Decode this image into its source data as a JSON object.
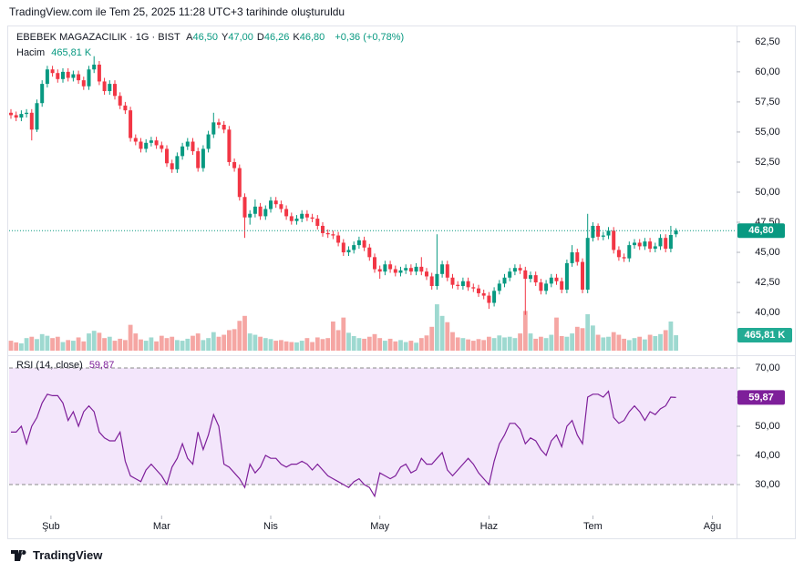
{
  "header": "TradingView.com ile Tem 25, 2025 11:28 UTC+3 tarihinde oluşturuldu",
  "footer": "TradingView",
  "chart_data": {
    "type": "candlestick",
    "title": "EBEBEK MAGAZACILIK · 1G · BIST",
    "legend": [
      {
        "key": "A",
        "label": "46,50"
      },
      {
        "key": "Y",
        "label": "47,00"
      },
      {
        "key": "D",
        "label": "46,26"
      },
      {
        "key": "K",
        "label": "46,80"
      }
    ],
    "change_label": "+0,36 (+0,78%)",
    "last_price_label": "46,80",
    "up_color": "#089981",
    "down_color": "#f23645",
    "xlim": [
      -0.35,
      139.65
    ],
    "xticks": [
      {
        "value": 7.7,
        "label": "Şub"
      },
      {
        "value": 29,
        "label": "Mar"
      },
      {
        "value": 50,
        "label": "Nis"
      },
      {
        "value": 71,
        "label": "May"
      },
      {
        "value": 92,
        "label": "Haz"
      },
      {
        "value": 112,
        "label": "Tem"
      },
      {
        "value": 135,
        "label": "Ağu"
      }
    ],
    "ylim": [
      36.6,
      63.7
    ],
    "yticks": [
      {
        "value": 40,
        "label": "40,00"
      },
      {
        "value": 42.5,
        "label": "42,50"
      },
      {
        "value": 45,
        "label": "45,00"
      },
      {
        "value": 47.5,
        "label": "47,50"
      },
      {
        "value": 50,
        "label": "50,00"
      },
      {
        "value": 52.5,
        "label": "52,50"
      },
      {
        "value": 55,
        "label": "55,00"
      },
      {
        "value": 57.5,
        "label": "57,50"
      },
      {
        "value": 60,
        "label": "60,00"
      },
      {
        "value": 62.5,
        "label": "62,50"
      }
    ],
    "open": [
      56.6,
      56.4,
      56.2,
      56.5,
      56.6,
      55.2,
      57.4,
      59.0,
      60.2,
      59.9,
      59.4,
      60.0,
      59.5,
      59.8,
      59.3,
      58.8,
      60.2,
      60.6,
      59.2,
      58.4,
      59.0,
      58.0,
      57.2,
      56.8,
      54.5,
      54.2,
      53.6,
      54.1,
      54.3,
      53.9,
      53.6,
      52.4,
      51.9,
      53.0,
      53.8,
      54.2,
      53.4,
      52.0,
      53.6,
      54.8,
      55.8,
      55.6,
      55.2,
      52.5,
      52.0,
      49.6,
      47.9,
      48.2,
      48.8,
      48.0,
      48.6,
      49.3,
      49.0,
      48.6,
      48.0,
      47.6,
      47.8,
      48.2,
      47.9,
      47.8,
      47.2,
      46.6,
      46.5,
      46.4,
      45.8,
      45.0,
      45.2,
      45.6,
      46.0,
      45.4,
      44.6,
      43.6,
      43.4,
      44.0,
      43.6,
      43.3,
      43.5,
      43.7,
      43.4,
      43.8,
      43.4,
      43.0,
      42.2,
      43.2,
      44.0,
      42.9,
      42.3,
      42.2,
      42.6,
      42.1,
      42.0,
      41.6,
      41.4,
      40.8,
      41.8,
      42.4,
      42.9,
      43.4,
      43.7,
      43.5,
      42.8,
      43.1,
      42.5,
      41.8,
      42.4,
      42.9,
      42.6,
      41.9,
      44.1,
      45.0,
      44.2,
      41.9,
      46.2,
      47.2,
      46.3,
      46.4,
      46.8,
      45.2,
      44.6,
      44.5,
      45.6,
      45.8,
      45.5,
      45.9,
      45.3,
      45.5,
      46.2,
      45.3,
      46.5
    ],
    "high": [
      56.9,
      56.7,
      56.8,
      56.9,
      56.9,
      57.7,
      59.3,
      60.5,
      60.5,
      60.2,
      60.3,
      60.3,
      60.1,
      60.1,
      59.6,
      60.5,
      61.3,
      60.9,
      59.5,
      59.3,
      59.3,
      58.3,
      57.5,
      57.1,
      54.8,
      54.5,
      54.4,
      54.6,
      54.6,
      54.2,
      53.9,
      52.7,
      53.3,
      54.1,
      54.5,
      54.5,
      53.7,
      53.9,
      55.1,
      56.6,
      56.1,
      55.9,
      55.5,
      52.8,
      52.3,
      49.9,
      48.5,
      49.4,
      49.1,
      48.9,
      49.6,
      49.6,
      49.3,
      48.9,
      48.3,
      48.1,
      48.5,
      48.5,
      48.2,
      48.1,
      47.5,
      46.9,
      46.8,
      46.7,
      46.1,
      45.5,
      45.9,
      46.3,
      46.3,
      45.7,
      44.9,
      43.9,
      44.3,
      44.3,
      43.9,
      43.8,
      44.0,
      44.0,
      44.1,
      44.6,
      43.7,
      43.3,
      46.5,
      44.3,
      44.3,
      43.2,
      42.6,
      42.9,
      42.9,
      42.4,
      42.3,
      41.9,
      41.7,
      42.1,
      42.7,
      43.2,
      43.7,
      44.0,
      44.0,
      43.8,
      43.4,
      43.4,
      42.8,
      42.7,
      43.2,
      43.2,
      42.9,
      44.4,
      45.6,
      45.3,
      44.5,
      48.2,
      47.5,
      47.4,
      46.7,
      47.1,
      47.1,
      45.5,
      44.9,
      45.9,
      46.1,
      46.1,
      46.2,
      46.2,
      45.8,
      46.5,
      46.5,
      47.2,
      47.0
    ],
    "low": [
      56.1,
      55.9,
      55.9,
      56.2,
      54.3,
      55.0,
      57.1,
      58.7,
      59.6,
      59.1,
      59.1,
      59.2,
      59.2,
      59.0,
      58.5,
      58.5,
      59.9,
      58.9,
      58.1,
      58.1,
      57.7,
      56.9,
      56.5,
      54.2,
      53.9,
      53.3,
      53.3,
      53.8,
      53.6,
      53.3,
      52.1,
      51.6,
      51.6,
      52.7,
      53.5,
      53.1,
      51.7,
      51.7,
      53.3,
      54.5,
      55.3,
      54.9,
      52.2,
      51.7,
      49.3,
      46.2,
      47.3,
      47.9,
      47.7,
      47.7,
      48.3,
      48.7,
      48.3,
      47.7,
      47.3,
      47.3,
      47.5,
      47.6,
      47.5,
      46.9,
      46.3,
      46.2,
      46.1,
      45.5,
      44.7,
      44.7,
      44.9,
      45.3,
      45.1,
      44.3,
      43.3,
      42.8,
      43.1,
      43.3,
      43.0,
      43.0,
      43.2,
      43.1,
      43.1,
      43.1,
      42.7,
      41.9,
      41.9,
      42.9,
      42.6,
      42.0,
      41.9,
      41.9,
      41.8,
      41.7,
      41.3,
      41.1,
      40.3,
      40.5,
      41.5,
      42.1,
      42.6,
      43.1,
      43.2,
      39.8,
      42.5,
      42.2,
      41.5,
      41.5,
      42.1,
      42.3,
      41.6,
      41.6,
      43.8,
      43.9,
      41.6,
      41.6,
      45.9,
      46.0,
      46.0,
      46.1,
      44.9,
      44.3,
      44.2,
      44.2,
      45.3,
      45.2,
      45.2,
      45.0,
      45.0,
      45.2,
      45.0,
      45.0,
      46.26
    ],
    "close": [
      56.4,
      56.2,
      56.5,
      56.6,
      55.2,
      57.4,
      59.0,
      60.2,
      59.9,
      59.4,
      60.0,
      59.5,
      59.8,
      59.3,
      58.8,
      60.2,
      60.6,
      59.2,
      58.4,
      59.0,
      58.0,
      57.2,
      56.8,
      54.5,
      54.2,
      53.6,
      54.1,
      54.3,
      53.9,
      53.6,
      52.4,
      51.9,
      53.0,
      53.8,
      54.2,
      53.4,
      52.0,
      53.6,
      54.8,
      55.8,
      55.6,
      55.2,
      52.5,
      52.0,
      49.6,
      47.9,
      48.2,
      48.8,
      48.0,
      48.6,
      49.3,
      49.0,
      48.6,
      48.0,
      47.6,
      47.8,
      48.2,
      47.9,
      47.8,
      47.2,
      46.6,
      46.5,
      46.4,
      45.8,
      45.0,
      45.2,
      45.6,
      46.0,
      45.4,
      44.6,
      43.6,
      43.4,
      44.0,
      43.6,
      43.3,
      43.5,
      43.7,
      43.4,
      43.8,
      43.4,
      43.0,
      42.2,
      43.2,
      44.0,
      42.9,
      42.3,
      42.2,
      42.6,
      42.1,
      42.0,
      41.6,
      41.4,
      40.8,
      41.8,
      42.4,
      42.9,
      43.4,
      43.7,
      43.5,
      42.8,
      43.1,
      42.5,
      41.8,
      42.4,
      42.9,
      42.6,
      41.9,
      44.1,
      45.0,
      44.2,
      41.9,
      46.2,
      47.2,
      46.3,
      46.4,
      46.8,
      45.2,
      44.6,
      44.5,
      45.6,
      45.8,
      45.5,
      45.9,
      45.3,
      45.5,
      46.2,
      45.3,
      46.44,
      46.8
    ],
    "volume": {
      "name": "Hacim",
      "value_label": "465,81 K",
      "ylim": [
        0,
        1650
      ],
      "up_color": "#9ed9d0",
      "down_color": "#f5a6a3",
      "values": [
        300,
        250,
        220,
        380,
        420,
        350,
        500,
        450,
        380,
        420,
        260,
        320,
        300,
        400,
        280,
        520,
        600,
        540,
        380,
        420,
        300,
        360,
        320,
        780,
        520,
        340,
        300,
        400,
        280,
        450,
        380,
        420,
        320,
        300,
        360,
        450,
        520,
        320,
        380,
        560,
        420,
        480,
        620,
        650,
        900,
        1050,
        520,
        480,
        420,
        380,
        350,
        300,
        320,
        280,
        260,
        250,
        300,
        380,
        260,
        400,
        350,
        380,
        880,
        620,
        1000,
        540,
        440,
        380,
        360,
        420,
        500,
        380,
        300,
        360,
        280,
        320,
        260,
        300,
        240,
        380,
        460,
        720,
        1400,
        1050,
        860,
        560,
        400,
        380,
        340,
        300,
        350,
        320,
        420,
        380,
        460,
        400,
        420,
        380,
        520,
        1200,
        520,
        360,
        420,
        380,
        480,
        1000,
        440,
        420,
        520,
        720,
        680,
        1100,
        760,
        480,
        400,
        420,
        560,
        480,
        360,
        320,
        380,
        420,
        340,
        480,
        440,
        500,
        620,
        880,
        465.81
      ]
    },
    "rsi": {
      "name": "RSI (14, close)",
      "value_label": "59,87",
      "color": "#7e1f9a",
      "band": [
        30,
        70
      ],
      "ylim": [
        19.7,
        73.75
      ],
      "yticks": [
        {
          "value": 30,
          "label": "30,00"
        },
        {
          "value": 40,
          "label": "40,00"
        },
        {
          "value": 50,
          "label": "50,00"
        },
        {
          "value": 60,
          "label": "60,00"
        },
        {
          "value": 70,
          "label": "70,00"
        }
      ],
      "values": [
        48,
        48,
        50,
        44,
        50,
        53,
        58,
        61,
        60.5,
        60.5,
        58,
        52,
        55,
        50,
        55,
        57,
        55,
        48,
        46,
        45,
        45,
        48,
        38,
        33,
        32,
        31,
        35,
        37,
        35,
        33,
        30,
        36,
        39,
        44,
        39,
        37,
        48,
        42,
        47,
        54,
        50,
        37,
        36,
        34,
        32,
        29,
        37,
        34,
        36,
        40,
        39,
        39,
        37,
        36,
        37,
        37,
        38,
        37,
        35,
        37,
        35,
        33,
        32,
        31,
        30,
        29,
        31,
        32,
        30,
        29,
        26,
        34,
        33,
        32,
        33,
        36,
        37,
        34,
        35,
        39,
        37,
        37,
        39,
        41,
        35,
        33,
        35,
        37,
        39,
        37,
        34,
        32,
        30,
        38,
        44,
        47,
        51,
        51,
        49,
        44,
        46,
        45,
        42,
        40,
        45,
        47,
        43,
        50,
        52,
        47,
        44,
        60,
        61,
        61,
        60,
        62,
        53,
        51,
        52,
        55,
        57,
        55,
        52,
        55,
        54,
        56,
        57,
        60,
        59.87
      ]
    }
  }
}
